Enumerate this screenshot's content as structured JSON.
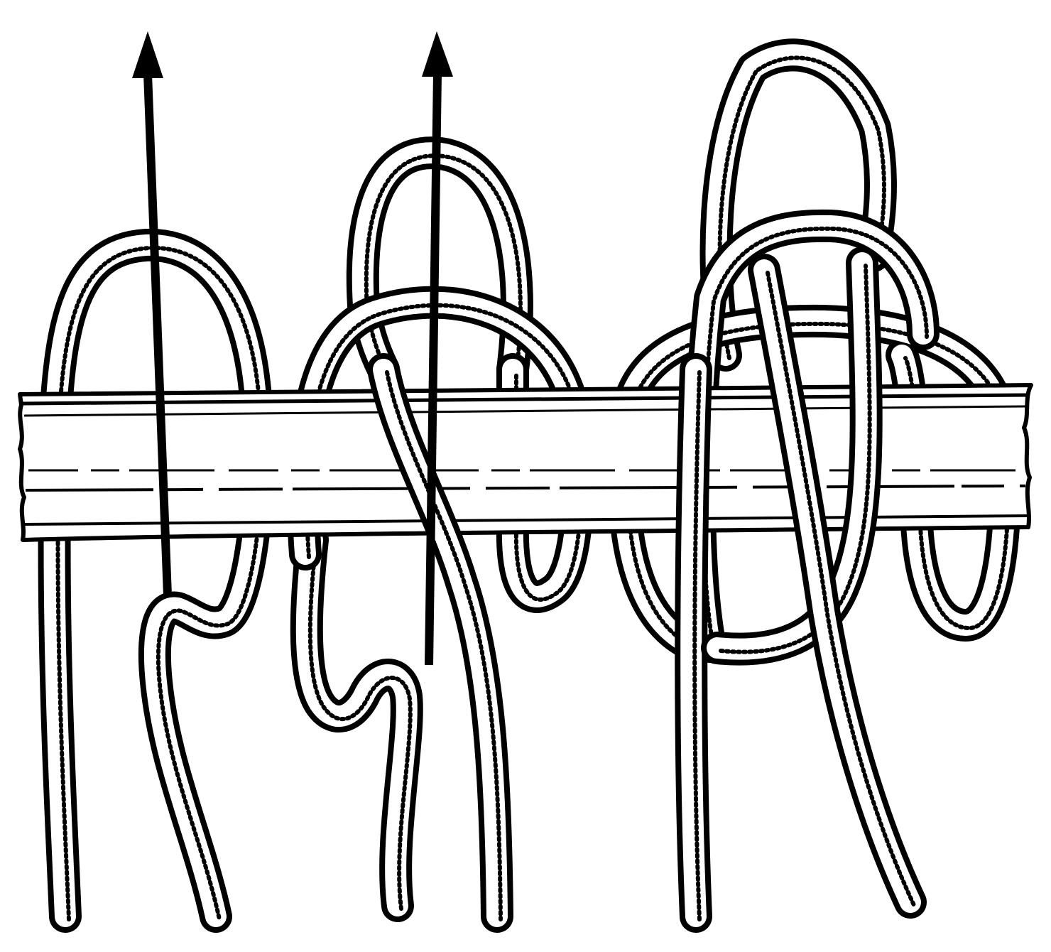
{
  "colors": {
    "ink": "#000000",
    "paper": "#ffffff"
  },
  "figures": [
    {
      "name": "stage-1",
      "arrows": 1
    },
    {
      "name": "stage-2",
      "arrows": 1
    },
    {
      "name": "stage-3",
      "arrows": 0
    }
  ]
}
